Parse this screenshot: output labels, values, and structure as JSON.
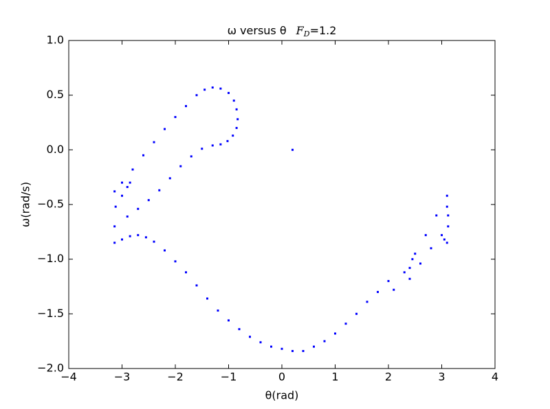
{
  "chart_data": {
    "type": "scatter",
    "title": "ω versus θ",
    "title_symbol": "F",
    "title_subscript": "D",
    "title_value": "=1.2",
    "x_label": "θ(rad)",
    "y_label": "ω(rad/s)",
    "color": "#0000ff",
    "xlim": [
      -4,
      4
    ],
    "xticks": [
      {
        "value": -4,
        "label": "−4"
      },
      {
        "value": -3,
        "label": "−3"
      },
      {
        "value": -2,
        "label": "−2"
      },
      {
        "value": -1,
        "label": "−1"
      },
      0,
      1,
      2,
      3,
      4
    ],
    "ylim": [
      -2,
      1
    ],
    "yticks": [
      {
        "value": -2,
        "label": "−2.0"
      },
      {
        "value": -1.5,
        "label": "−1.5"
      },
      {
        "value": -1,
        "label": "−1.0"
      },
      {
        "value": -0.5,
        "label": "−0.5"
      },
      {
        "value": 0,
        "label": "0.0"
      },
      {
        "value": 0.5,
        "label": "0.5"
      },
      {
        "value": 1,
        "label": "1.0"
      }
    ],
    "x": [
      -3.14,
      -3.0,
      -2.8,
      -2.6,
      -2.4,
      -2.2,
      -2.0,
      -1.8,
      -1.6,
      -1.45,
      -1.3,
      -1.15,
      -1.0,
      -0.9,
      -0.85,
      -0.83,
      -0.85,
      -0.92,
      -1.02,
      -1.15,
      -1.3,
      -1.5,
      -1.7,
      -1.9,
      -2.1,
      -2.3,
      -2.5,
      -2.7,
      -2.9,
      -3.14,
      -3.12,
      -3.0,
      -2.9,
      -2.85,
      -3.14,
      -3.0,
      -2.85,
      -2.7,
      -2.55,
      -2.4,
      -2.2,
      -2.0,
      -1.8,
      -1.6,
      -1.4,
      -1.2,
      -1.0,
      -0.8,
      -0.6,
      -0.4,
      -0.2,
      0.0,
      0.2,
      0.4,
      0.6,
      0.8,
      1.0,
      1.2,
      1.4,
      1.6,
      1.8,
      2.0,
      2.1,
      2.3,
      2.5,
      2.7,
      2.9,
      3.1,
      2.4,
      2.6,
      2.8,
      3.0,
      3.12,
      3.1,
      3.12,
      3.05,
      3.1,
      2.45,
      2.4,
      0.2
    ],
    "y": [
      -0.38,
      -0.3,
      -0.18,
      -0.05,
      0.07,
      0.19,
      0.3,
      0.4,
      0.5,
      0.55,
      0.57,
      0.56,
      0.52,
      0.45,
      0.37,
      0.28,
      0.2,
      0.13,
      0.08,
      0.05,
      0.04,
      0.01,
      -0.06,
      -0.15,
      -0.26,
      -0.37,
      -0.46,
      -0.54,
      -0.61,
      -0.7,
      -0.52,
      -0.42,
      -0.34,
      -0.3,
      -0.85,
      -0.82,
      -0.79,
      -0.78,
      -0.8,
      -0.84,
      -0.92,
      -1.02,
      -1.12,
      -1.24,
      -1.36,
      -1.47,
      -1.56,
      -1.64,
      -1.71,
      -1.76,
      -1.8,
      -1.82,
      -1.84,
      -1.84,
      -1.8,
      -1.75,
      -1.68,
      -1.59,
      -1.5,
      -1.39,
      -1.3,
      -1.2,
      -1.28,
      -1.12,
      -0.95,
      -0.78,
      -0.6,
      -0.42,
      -1.18,
      -1.04,
      -0.9,
      -0.78,
      -0.7,
      -0.52,
      -0.6,
      -0.82,
      -0.85,
      -1.0,
      -1.08,
      0.0
    ]
  }
}
